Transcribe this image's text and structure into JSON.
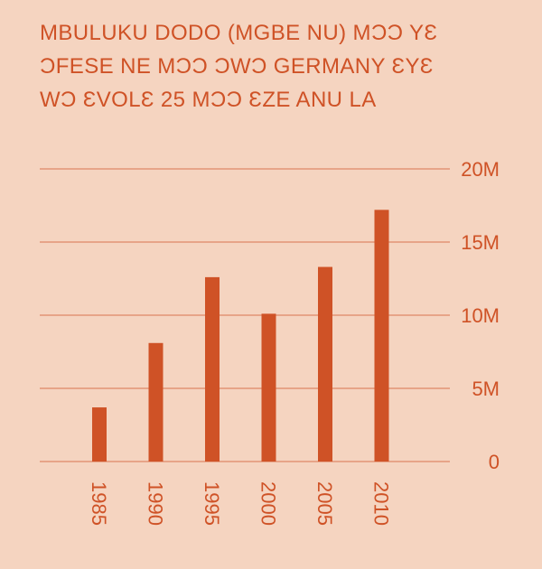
{
  "chart_data": {
    "type": "bar",
    "title_lines": [
      "Mbuluku dodo (mgbe nu) mɔɔ yɛ",
      "ɔfese ne mɔɔ ɔwɔ Germany ɛyɛ",
      "wɔ ɛvolɛ 25 mɔɔ ɛze anu la"
    ],
    "categories": [
      "1985",
      "1990",
      "1995",
      "2000",
      "2005",
      "2010"
    ],
    "values": [
      3.7,
      8.1,
      12.6,
      10.1,
      13.3,
      17.2
    ],
    "ylim": [
      0,
      20
    ],
    "yticks": [
      0,
      5,
      10,
      15,
      20
    ],
    "ytick_labels": [
      "0",
      "5M",
      "10M",
      "15M",
      "20M"
    ],
    "grid": true,
    "xlabel": "",
    "ylabel": "",
    "colors": {
      "background": "#f5d4c0",
      "bar": "#cf5226",
      "text": "#cf5226",
      "grid": "#d9754f"
    }
  }
}
